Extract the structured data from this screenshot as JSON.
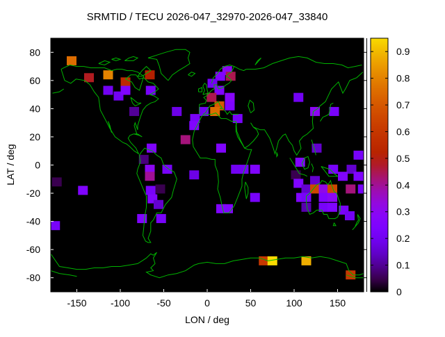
{
  "title": "SRMTID / TECU 2026-047_32970-2026-047_33840",
  "axes": {
    "xlabel": "LON / deg",
    "ylabel": "LAT / deg",
    "xtick_labels": [
      "-150",
      "-100",
      "-50",
      "0",
      "50",
      "100",
      "150"
    ],
    "xtick_values": [
      -150,
      -100,
      -50,
      0,
      50,
      100,
      150
    ],
    "ytick_labels": [
      "80",
      "60",
      "40",
      "20",
      "0",
      "-20",
      "-40",
      "-60",
      "-80"
    ],
    "ytick_values": [
      80,
      60,
      40,
      20,
      0,
      -20,
      -40,
      -60,
      -80
    ]
  },
  "colorbar": {
    "min": 0,
    "max": 0.95,
    "tick_labels": [
      "0",
      "0.1",
      "0.2",
      "0.3",
      "0.4",
      "0.5",
      "0.6",
      "0.7",
      "0.8",
      "0.9"
    ],
    "tick_values": [
      0,
      0.1,
      0.2,
      0.3,
      0.4,
      0.5,
      0.6,
      0.7,
      0.8,
      0.9
    ],
    "palette": "gnuplot default: black-purple-violet-red-orange-yellow"
  },
  "colors": {
    "page_background": "#ffffff",
    "plot_background": "#000000",
    "coastline": "#00b400",
    "text": "#000000",
    "palette_low": "#000000",
    "palette_mid": "#8004ff",
    "palette_high": "#ffff00"
  },
  "chart_data": {
    "type": "heatmap",
    "title": "SRMTID / TECU 2026-047_32970-2026-047_33840",
    "xlabel": "LON / deg",
    "ylabel": "LAT / deg",
    "xlim": [
      -180,
      180
    ],
    "ylim": [
      -90,
      90
    ],
    "grid": false,
    "legend_position": "right-colorbar",
    "colorbar_range": [
      0,
      0.95
    ],
    "marker": "filled-square",
    "marker_size_px": [
      14,
      13
    ],
    "point_format": [
      "lon_deg",
      "lat_deg",
      "value_tecu"
    ],
    "points": [
      [
        -156,
        74,
        0.75
      ],
      [
        -136,
        62,
        0.48
      ],
      [
        -114,
        64,
        0.8
      ],
      [
        -94,
        59,
        0.55
      ],
      [
        -66,
        64,
        0.5
      ],
      [
        -114,
        53,
        0.2
      ],
      [
        -102,
        49,
        0.2
      ],
      [
        -94,
        53,
        0.25
      ],
      [
        -65,
        53,
        0.22
      ],
      [
        -84,
        38,
        0.1
      ],
      [
        -35,
        38,
        0.18
      ],
      [
        -25,
        18,
        0.42
      ],
      [
        -64,
        12,
        0.25
      ],
      [
        -73,
        4,
        0.08
      ],
      [
        -66,
        -3,
        0.3
      ],
      [
        -66,
        -8,
        0.4
      ],
      [
        -46,
        -3,
        0.22
      ],
      [
        -15,
        -7,
        0.18
      ],
      [
        -173,
        -12,
        0.05
      ],
      [
        -143,
        -18,
        0.25
      ],
      [
        -65,
        -18,
        0.22
      ],
      [
        -54,
        -17,
        0.05
      ],
      [
        -63,
        -24,
        0.25
      ],
      [
        -56,
        -28,
        0.15
      ],
      [
        -75,
        -38,
        0.25
      ],
      [
        -53,
        -38,
        0.22
      ],
      [
        -175,
        -43,
        0.22
      ],
      [
        23,
        67,
        0.3
      ],
      [
        15,
        63,
        0.25
      ],
      [
        27,
        63,
        0.45
      ],
      [
        6,
        58,
        0.2
      ],
      [
        14,
        53,
        0.25
      ],
      [
        5,
        48,
        0.45
      ],
      [
        26,
        48,
        0.28
      ],
      [
        14,
        42,
        0.7
      ],
      [
        26,
        42,
        0.25
      ],
      [
        -4,
        38,
        0.2
      ],
      [
        9,
        38,
        0.75
      ],
      [
        -14,
        33,
        0.22
      ],
      [
        -15,
        28,
        0.25
      ],
      [
        35,
        33,
        0.22
      ],
      [
        16,
        12,
        0.25
      ],
      [
        33,
        -3,
        0.2
      ],
      [
        42,
        -3,
        0.2
      ],
      [
        16,
        -31,
        0.25
      ],
      [
        24,
        -31,
        0.25
      ],
      [
        55,
        -3,
        0.25
      ],
      [
        55,
        -23,
        0.22
      ],
      [
        105,
        48,
        0.2
      ],
      [
        124,
        38,
        0.3
      ],
      [
        146,
        38,
        0.22
      ],
      [
        126,
        12,
        0.15
      ],
      [
        107,
        2,
        0.25
      ],
      [
        174,
        7,
        0.22
      ],
      [
        145,
        -3,
        0.22
      ],
      [
        166,
        -3,
        0.15
      ],
      [
        156,
        -8,
        0.25
      ],
      [
        174,
        -8,
        0.25
      ],
      [
        102,
        -7,
        0.05
      ],
      [
        105,
        -13,
        0.25
      ],
      [
        124,
        -11,
        0.15
      ],
      [
        114,
        -17,
        0.15
      ],
      [
        124,
        -17,
        0.65
      ],
      [
        134,
        -17,
        0.32
      ],
      [
        144,
        -17,
        0.65
      ],
      [
        165,
        -17,
        0.42
      ],
      [
        179,
        -17,
        0.22
      ],
      [
        108,
        -23,
        0.25
      ],
      [
        114,
        -23,
        0.22
      ],
      [
        134,
        -23,
        0.25
      ],
      [
        144,
        -23,
        0.3
      ],
      [
        114,
        -30,
        0.12
      ],
      [
        134,
        -30,
        0.22
      ],
      [
        144,
        -30,
        0.25
      ],
      [
        157,
        -32,
        0.22
      ],
      [
        164,
        -36,
        0.2
      ],
      [
        65,
        -68,
        0.6
      ],
      [
        75,
        -68,
        0.95
      ],
      [
        114,
        -68,
        0.88
      ],
      [
        165,
        -78,
        0.6
      ]
    ]
  }
}
